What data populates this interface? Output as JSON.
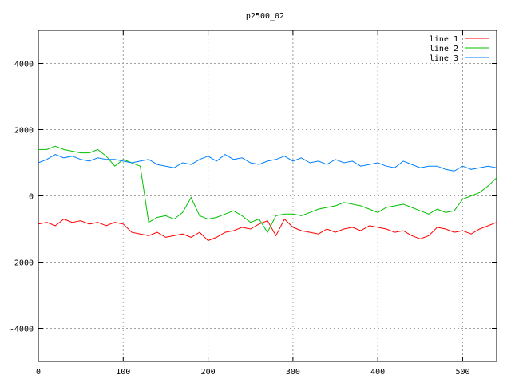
{
  "chart_data": {
    "type": "line",
    "title": "p2500_02",
    "xlabel": "",
    "ylabel": "",
    "xlim": [
      0,
      540
    ],
    "ylim": [
      -5000,
      5000
    ],
    "xticks": [
      0,
      100,
      200,
      300,
      400,
      500
    ],
    "yticks": [
      -4000,
      -2000,
      0,
      2000,
      4000
    ],
    "grid": true,
    "legend_position": "top-right",
    "series": [
      {
        "name": "line 1",
        "color": "#ff0000",
        "x": [
          0,
          10,
          20,
          30,
          40,
          50,
          60,
          70,
          80,
          90,
          100,
          110,
          120,
          130,
          140,
          150,
          160,
          170,
          180,
          190,
          200,
          210,
          220,
          230,
          240,
          250,
          260,
          270,
          280,
          290,
          300,
          310,
          320,
          330,
          340,
          350,
          360,
          370,
          380,
          390,
          400,
          410,
          420,
          430,
          440,
          450,
          460,
          470,
          480,
          490,
          500,
          510,
          520,
          530,
          540
        ],
        "values": [
          -850,
          -800,
          -900,
          -700,
          -800,
          -750,
          -850,
          -800,
          -900,
          -800,
          -850,
          -1100,
          -1150,
          -1200,
          -1100,
          -1250,
          -1200,
          -1150,
          -1250,
          -1100,
          -1350,
          -1250,
          -1100,
          -1050,
          -950,
          -1000,
          -850,
          -750,
          -1200,
          -700,
          -950,
          -1050,
          -1100,
          -1150,
          -1000,
          -1100,
          -1000,
          -950,
          -1050,
          -900,
          -950,
          -1000,
          -1100,
          -1050,
          -1200,
          -1300,
          -1200,
          -950,
          -1000,
          -1100,
          -1050,
          -1150,
          -1000,
          -900,
          -800
        ]
      },
      {
        "name": "line 2",
        "color": "#00c000",
        "x": [
          0,
          10,
          20,
          30,
          40,
          50,
          60,
          70,
          80,
          90,
          100,
          110,
          120,
          130,
          140,
          150,
          160,
          170,
          180,
          190,
          200,
          210,
          220,
          230,
          240,
          250,
          260,
          270,
          280,
          290,
          300,
          310,
          320,
          330,
          340,
          350,
          360,
          370,
          380,
          390,
          400,
          410,
          420,
          430,
          440,
          450,
          460,
          470,
          480,
          490,
          500,
          510,
          520,
          530,
          540
        ],
        "values": [
          1400,
          1400,
          1500,
          1400,
          1350,
          1300,
          1300,
          1400,
          1200,
          900,
          1100,
          1000,
          900,
          -800,
          -650,
          -600,
          -700,
          -500,
          -50,
          -600,
          -700,
          -650,
          -550,
          -450,
          -600,
          -800,
          -700,
          -1100,
          -600,
          -550,
          -550,
          -600,
          -500,
          -400,
          -350,
          -300,
          -200,
          -250,
          -300,
          -400,
          -500,
          -350,
          -300,
          -250,
          -350,
          -450,
          -550,
          -400,
          -500,
          -450,
          -100,
          0,
          100,
          300,
          550
        ]
      },
      {
        "name": "line 3",
        "color": "#0080ff",
        "x": [
          0,
          10,
          20,
          30,
          40,
          50,
          60,
          70,
          80,
          90,
          100,
          110,
          120,
          130,
          140,
          150,
          160,
          170,
          180,
          190,
          200,
          210,
          220,
          230,
          240,
          250,
          260,
          270,
          280,
          290,
          300,
          310,
          320,
          330,
          340,
          350,
          360,
          370,
          380,
          390,
          400,
          410,
          420,
          430,
          440,
          450,
          460,
          470,
          480,
          490,
          500,
          510,
          520,
          530,
          540
        ],
        "values": [
          1000,
          1100,
          1250,
          1150,
          1200,
          1100,
          1050,
          1150,
          1100,
          1100,
          1050,
          1000,
          1050,
          1100,
          950,
          900,
          850,
          1000,
          950,
          1100,
          1200,
          1050,
          1250,
          1100,
          1150,
          1000,
          950,
          1050,
          1100,
          1200,
          1050,
          1150,
          1000,
          1050,
          950,
          1100,
          1000,
          1050,
          900,
          950,
          1000,
          900,
          850,
          1050,
          950,
          850,
          900,
          900,
          800,
          750,
          900,
          800,
          850,
          900,
          850
        ]
      }
    ]
  }
}
